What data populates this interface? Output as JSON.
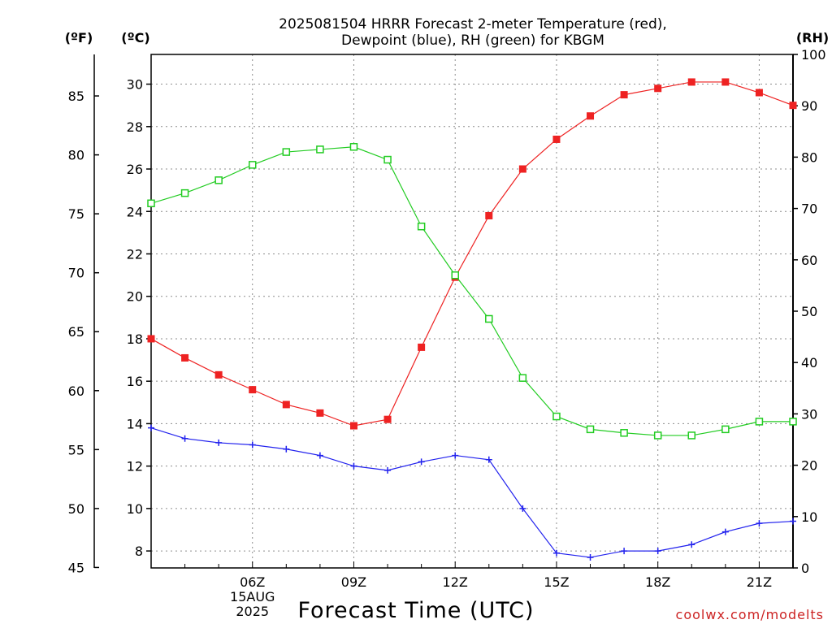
{
  "title": {
    "line1": "2025081504 HRRR Forecast 2-meter Temperature (red),",
    "line2": "Dewpoint (blue), RH (green) for KBGM"
  },
  "units": {
    "fahrenheit": "(ºF)",
    "celsius": "(ºC)",
    "rh": "(RH)"
  },
  "credit": {
    "text": "coolwx.com/modelts",
    "color": "#cc2222"
  },
  "chart_data": {
    "type": "line",
    "xlabel": "Forecast Time (UTC)",
    "x": [
      "03Z",
      "04Z",
      "05Z",
      "06Z",
      "07Z",
      "08Z",
      "09Z",
      "10Z",
      "11Z",
      "12Z",
      "13Z",
      "14Z",
      "15Z",
      "16Z",
      "17Z",
      "18Z",
      "19Z",
      "20Z",
      "21Z",
      "22Z"
    ],
    "x_tick_labels": [
      {
        "x": "06Z",
        "lines": [
          "06Z",
          "15AUG",
          "2025"
        ]
      },
      {
        "x": "09Z",
        "lines": [
          "09Z"
        ]
      },
      {
        "x": "12Z",
        "lines": [
          "12Z"
        ]
      },
      {
        "x": "15Z",
        "lines": [
          "15Z"
        ]
      },
      {
        "x": "18Z",
        "lines": [
          "18Z"
        ]
      },
      {
        "x": "21Z",
        "lines": [
          "21Z"
        ]
      }
    ],
    "celsius_axis": {
      "range": [
        7.2,
        31.4
      ],
      "ticks": [
        8,
        10,
        12,
        14,
        16,
        18,
        20,
        22,
        24,
        26,
        28,
        30
      ]
    },
    "fahrenheit_axis": {
      "range": [
        44.96,
        88.52
      ],
      "ticks": [
        45,
        50,
        55,
        60,
        65,
        70,
        75,
        80,
        85
      ]
    },
    "rh_axis": {
      "range": [
        0,
        100
      ],
      "ticks": [
        0,
        10,
        20,
        30,
        40,
        50,
        60,
        70,
        80,
        90,
        100
      ]
    },
    "grid": true,
    "series": [
      {
        "axis": "celsius",
        "color": "#ee2222",
        "marker": "filled-square",
        "values": [
          18.0,
          17.1,
          16.3,
          15.6,
          14.9,
          14.5,
          13.9,
          14.2,
          17.6,
          20.9,
          23.8,
          26.0,
          27.4,
          28.5,
          29.5,
          29.8,
          30.1,
          30.1,
          29.6,
          29.0
        ]
      },
      {
        "axis": "celsius",
        "color": "#2222ee",
        "marker": "plus",
        "values": [
          13.8,
          13.3,
          13.1,
          13.0,
          12.8,
          12.5,
          12.0,
          11.8,
          12.2,
          12.5,
          12.3,
          10.0,
          7.9,
          7.7,
          8.0,
          8.0,
          8.3,
          8.9,
          9.3,
          9.4
        ]
      },
      {
        "axis": "rh",
        "color": "#22cc22",
        "marker": "open-square",
        "values": [
          71,
          73,
          75.5,
          78.5,
          81,
          81.5,
          82,
          79.5,
          66.5,
          57,
          48.5,
          37,
          29.5,
          27,
          26.3,
          25.8,
          25.8,
          27,
          28.5,
          28.5
        ]
      }
    ]
  }
}
